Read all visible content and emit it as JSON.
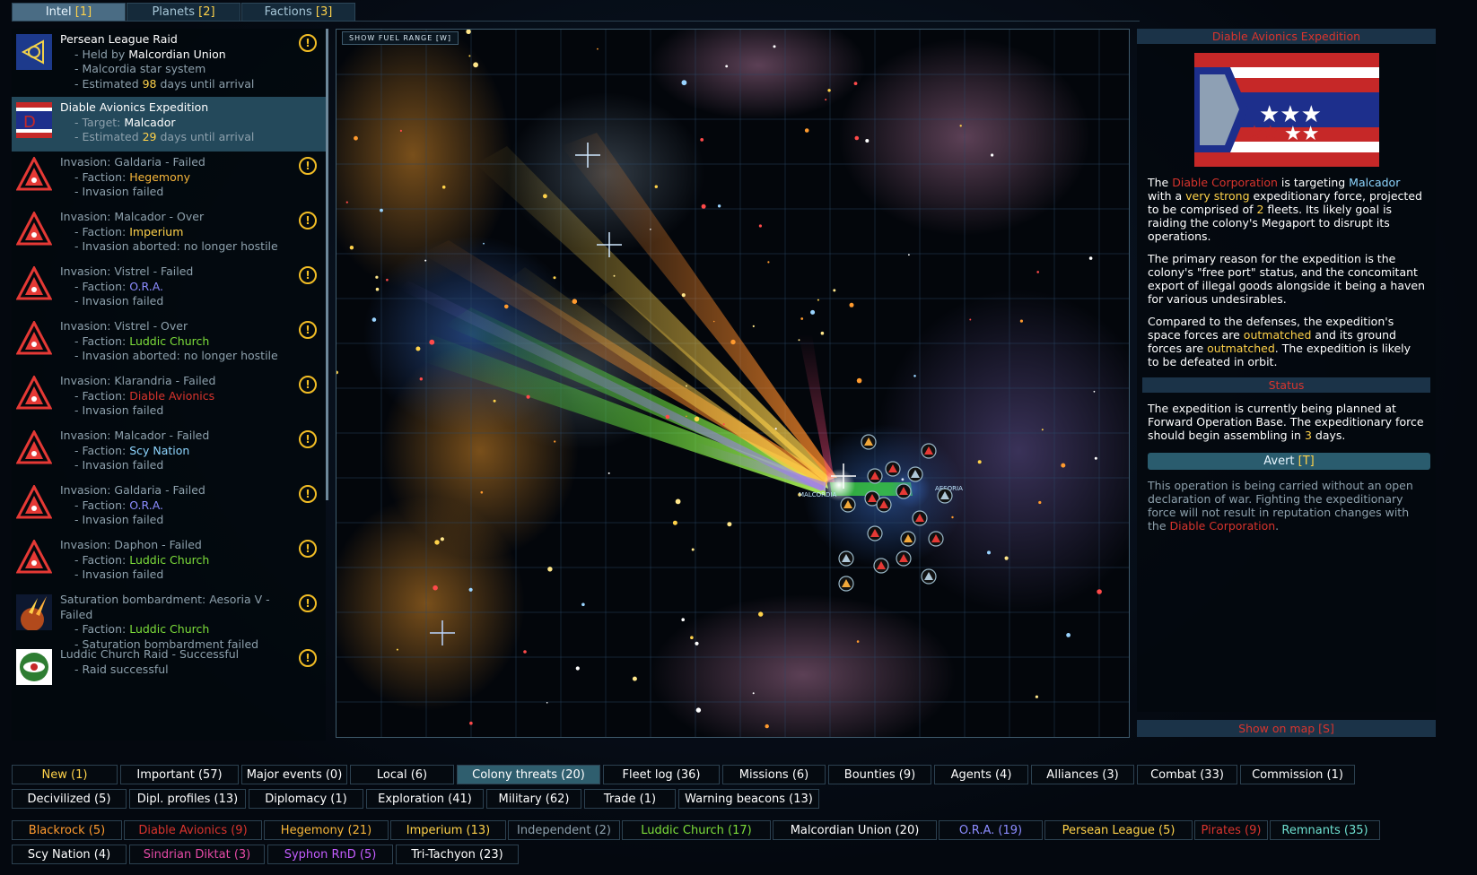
{
  "colors": {
    "white": "#ffffff",
    "yellow": "#ffd24a",
    "red": "#d9342d",
    "orange": "#ff9a2e",
    "blue": "#8ed6ff",
    "green": "#7dde3a",
    "purple": "#8c8cff",
    "gray": "#8da0ac",
    "magenta": "#e54aa6",
    "violet": "#c45dff",
    "teal": "#6ee0d0",
    "amber": "#f7b63a"
  },
  "tabs": [
    {
      "label": "Intel ",
      "key": "[1]",
      "active": true
    },
    {
      "label": "Planets ",
      "key": "[2]",
      "active": false
    },
    {
      "label": "Factions ",
      "key": "[3]",
      "active": false
    }
  ],
  "intel_entries": [
    {
      "icon": "persean-league-icon",
      "title": "Persean League Raid",
      "title_dim": false,
      "warn": true,
      "selected": false,
      "lines": [
        [
          {
            "t": "Held by ",
            "c": "gray"
          },
          {
            "t": "Malcordian Union",
            "c": "white"
          }
        ],
        [
          {
            "t": "Malcordia star system",
            "c": "gray"
          }
        ],
        [
          {
            "t": "Estimated ",
            "c": "gray"
          },
          {
            "t": "98",
            "c": "yellow"
          },
          {
            "t": " days until arrival",
            "c": "gray"
          }
        ]
      ]
    },
    {
      "icon": "diable-avionics-flag-icon",
      "title": "Diable Avionics Expedition",
      "title_dim": false,
      "warn": false,
      "selected": true,
      "lines": [
        [
          {
            "t": "Target: ",
            "c": "gray"
          },
          {
            "t": "Malcador",
            "c": "white"
          }
        ],
        [
          {
            "t": "Estimated ",
            "c": "gray"
          },
          {
            "t": "29",
            "c": "yellow"
          },
          {
            "t": " days until arrival",
            "c": "gray"
          }
        ]
      ]
    },
    {
      "icon": "invasion-icon",
      "title": "Invasion: Galdaria - Failed",
      "title_dim": true,
      "warn": true,
      "selected": false,
      "lines": [
        [
          {
            "t": "Faction: ",
            "c": "gray"
          },
          {
            "t": "Hegemony",
            "c": "amber"
          }
        ],
        [
          {
            "t": "Invasion failed",
            "c": "gray"
          }
        ]
      ]
    },
    {
      "icon": "invasion-icon",
      "title": "Invasion: Malcador - Over",
      "title_dim": true,
      "warn": true,
      "selected": false,
      "lines": [
        [
          {
            "t": "Faction: ",
            "c": "gray"
          },
          {
            "t": "Imperium",
            "c": "yellow"
          }
        ],
        [
          {
            "t": "Invasion aborted: no longer hostile",
            "c": "gray"
          }
        ]
      ]
    },
    {
      "icon": "invasion-icon",
      "title": "Invasion: Vistrel - Failed",
      "title_dim": true,
      "warn": true,
      "selected": false,
      "lines": [
        [
          {
            "t": "Faction: ",
            "c": "gray"
          },
          {
            "t": "O.R.A.",
            "c": "purple"
          }
        ],
        [
          {
            "t": "Invasion failed",
            "c": "gray"
          }
        ]
      ]
    },
    {
      "icon": "invasion-icon",
      "title": "Invasion: Vistrel - Over",
      "title_dim": true,
      "warn": true,
      "selected": false,
      "lines": [
        [
          {
            "t": "Faction: ",
            "c": "gray"
          },
          {
            "t": "Luddic Church",
            "c": "green"
          }
        ],
        [
          {
            "t": "Invasion aborted: no longer hostile",
            "c": "gray"
          }
        ]
      ]
    },
    {
      "icon": "invasion-icon",
      "title": "Invasion: Klarandria - Failed",
      "title_dim": true,
      "warn": true,
      "selected": false,
      "lines": [
        [
          {
            "t": "Faction: ",
            "c": "gray"
          },
          {
            "t": "Diable Avionics",
            "c": "red"
          }
        ],
        [
          {
            "t": "Invasion failed",
            "c": "gray"
          }
        ]
      ]
    },
    {
      "icon": "invasion-icon",
      "title": "Invasion: Malcador - Failed",
      "title_dim": true,
      "warn": true,
      "selected": false,
      "lines": [
        [
          {
            "t": "Faction: ",
            "c": "gray"
          },
          {
            "t": "Scy Nation",
            "c": "blue"
          }
        ],
        [
          {
            "t": "Invasion failed",
            "c": "gray"
          }
        ]
      ]
    },
    {
      "icon": "invasion-icon",
      "title": "Invasion: Galdaria - Failed",
      "title_dim": true,
      "warn": true,
      "selected": false,
      "lines": [
        [
          {
            "t": "Faction: ",
            "c": "gray"
          },
          {
            "t": "O.R.A.",
            "c": "purple"
          }
        ],
        [
          {
            "t": "Invasion failed",
            "c": "gray"
          }
        ]
      ]
    },
    {
      "icon": "invasion-icon",
      "title": "Invasion: Daphon - Failed",
      "title_dim": true,
      "warn": true,
      "selected": false,
      "lines": [
        [
          {
            "t": "Faction: ",
            "c": "gray"
          },
          {
            "t": "Luddic Church",
            "c": "green"
          }
        ],
        [
          {
            "t": "Invasion failed",
            "c": "gray"
          }
        ]
      ]
    },
    {
      "icon": "bombardment-icon",
      "title": "Saturation bombardment: Aesoria V - Failed",
      "title_dim": true,
      "warn": true,
      "selected": false,
      "lines": [
        [
          {
            "t": "Faction: ",
            "c": "gray"
          },
          {
            "t": "Luddic Church",
            "c": "green"
          }
        ],
        [
          {
            "t": "Saturation bombardment failed",
            "c": "gray"
          }
        ]
      ]
    },
    {
      "icon": "luddic-church-icon",
      "title": "Luddic Church Raid - Successful",
      "title_dim": true,
      "warn": true,
      "selected": false,
      "lines": [
        [
          {
            "t": "Raid successful",
            "c": "gray"
          }
        ]
      ]
    }
  ],
  "map": {
    "fuel_button": "SHOW FUEL RANGE [W]",
    "system_labels": [
      "MALCORDIA",
      "AESORIA"
    ]
  },
  "detail": {
    "title": "Diable Avionics Expedition",
    "paragraphs": [
      [
        {
          "t": "The ",
          "c": "white"
        },
        {
          "t": "Diable Corporation",
          "c": "red"
        },
        {
          "t": " is targeting ",
          "c": "white"
        },
        {
          "t": "Malcador",
          "c": "blue"
        },
        {
          "t": " with a ",
          "c": "white"
        },
        {
          "t": "very strong",
          "c": "yellow"
        },
        {
          "t": " expeditionary force, projected to be comprised of ",
          "c": "white"
        },
        {
          "t": "2",
          "c": "yellow"
        },
        {
          "t": " fleets. Its likely goal is raiding the colony's Megaport to disrupt its operations.",
          "c": "white"
        }
      ],
      [
        {
          "t": "The primary reason for the expedition is the colony's \"free port\" status, and the concomitant export of illegal goods alongside it being a haven for various undesirables.",
          "c": "white"
        }
      ],
      [
        {
          "t": "Compared to the defenses, the expedition's space forces are ",
          "c": "white"
        },
        {
          "t": "outmatched",
          "c": "yellow"
        },
        {
          "t": " and its ground forces are ",
          "c": "white"
        },
        {
          "t": "outmatched",
          "c": "yellow"
        },
        {
          "t": ". The expedition is likely to be defeated in orbit.",
          "c": "white"
        }
      ]
    ],
    "status_heading": "Status",
    "status_paragraph": [
      {
        "t": "The expedition is currently being planned at Forward Operation Base. The expeditionary force should begin assembling in ",
        "c": "white"
      },
      {
        "t": "3",
        "c": "yellow"
      },
      {
        "t": " days.",
        "c": "white"
      }
    ],
    "avert_label": "Avert ",
    "avert_key": "[T]",
    "note": [
      {
        "t": "This operation is being carried without an open declaration of war. Fighting the expeditionary force will not result in reputation changes with the ",
        "c": "gray"
      },
      {
        "t": "Diable Corporation",
        "c": "red"
      },
      {
        "t": ".",
        "c": "gray"
      }
    ],
    "show_on_map": "Show on map [S]"
  },
  "filter_rows": [
    [
      {
        "label": "New (1)",
        "color": "yellow",
        "active": false
      },
      {
        "label": "Important (57)",
        "color": "white",
        "active": false
      },
      {
        "label": "Major events (0)",
        "color": "white",
        "active": false
      },
      {
        "label": "Local (6)",
        "color": "white",
        "active": false
      },
      {
        "label": "Colony threats (20)",
        "color": "white",
        "active": true
      },
      {
        "label": "Fleet log (36)",
        "color": "white",
        "active": false
      },
      {
        "label": "Missions (6)",
        "color": "white",
        "active": false
      },
      {
        "label": "Bounties (9)",
        "color": "white",
        "active": false
      },
      {
        "label": "Agents (4)",
        "color": "white",
        "active": false
      },
      {
        "label": "Alliances (3)",
        "color": "white",
        "active": false
      },
      {
        "label": "Combat (33)",
        "color": "white",
        "active": false
      },
      {
        "label": "Commission (1)",
        "color": "white",
        "active": false
      }
    ],
    [
      {
        "label": "Decivilized (5)",
        "color": "white",
        "active": false
      },
      {
        "label": "Dipl. profiles (13)",
        "color": "white",
        "active": false
      },
      {
        "label": "Diplomacy (1)",
        "color": "white",
        "active": false
      },
      {
        "label": "Exploration (41)",
        "color": "white",
        "active": false
      },
      {
        "label": "Military (62)",
        "color": "white",
        "active": false
      },
      {
        "label": "Trade (1)",
        "color": "white",
        "active": false
      },
      {
        "label": "Warning beacons (13)",
        "color": "white",
        "active": false
      }
    ],
    [
      {
        "label": "Blackrock (5)",
        "color": "orange",
        "active": false
      },
      {
        "label": "Diable Avionics (9)",
        "color": "red",
        "active": false
      },
      {
        "label": "Hegemony (21)",
        "color": "amber",
        "active": false
      },
      {
        "label": "Imperium (13)",
        "color": "yellow",
        "active": false
      },
      {
        "label": "Independent (2)",
        "color": "gray",
        "active": false
      },
      {
        "label": "Luddic Church (17)",
        "color": "green",
        "active": false
      },
      {
        "label": "Malcordian Union (20)",
        "color": "white",
        "active": false
      },
      {
        "label": "O.R.A. (19)",
        "color": "purple",
        "active": false
      },
      {
        "label": "Persean League (5)",
        "color": "yellow",
        "active": false
      },
      {
        "label": "Pirates (9)",
        "color": "red",
        "active": false
      },
      {
        "label": "Remnants (35)",
        "color": "teal",
        "active": false
      }
    ],
    [
      {
        "label": "Scy Nation (4)",
        "color": "white",
        "active": false
      },
      {
        "label": "Sindrian Diktat (3)",
        "color": "magenta",
        "active": false
      },
      {
        "label": "Syphon RnD (5)",
        "color": "violet",
        "active": false
      },
      {
        "label": "Tri-Tachyon (23)",
        "color": "white",
        "active": false
      }
    ]
  ]
}
